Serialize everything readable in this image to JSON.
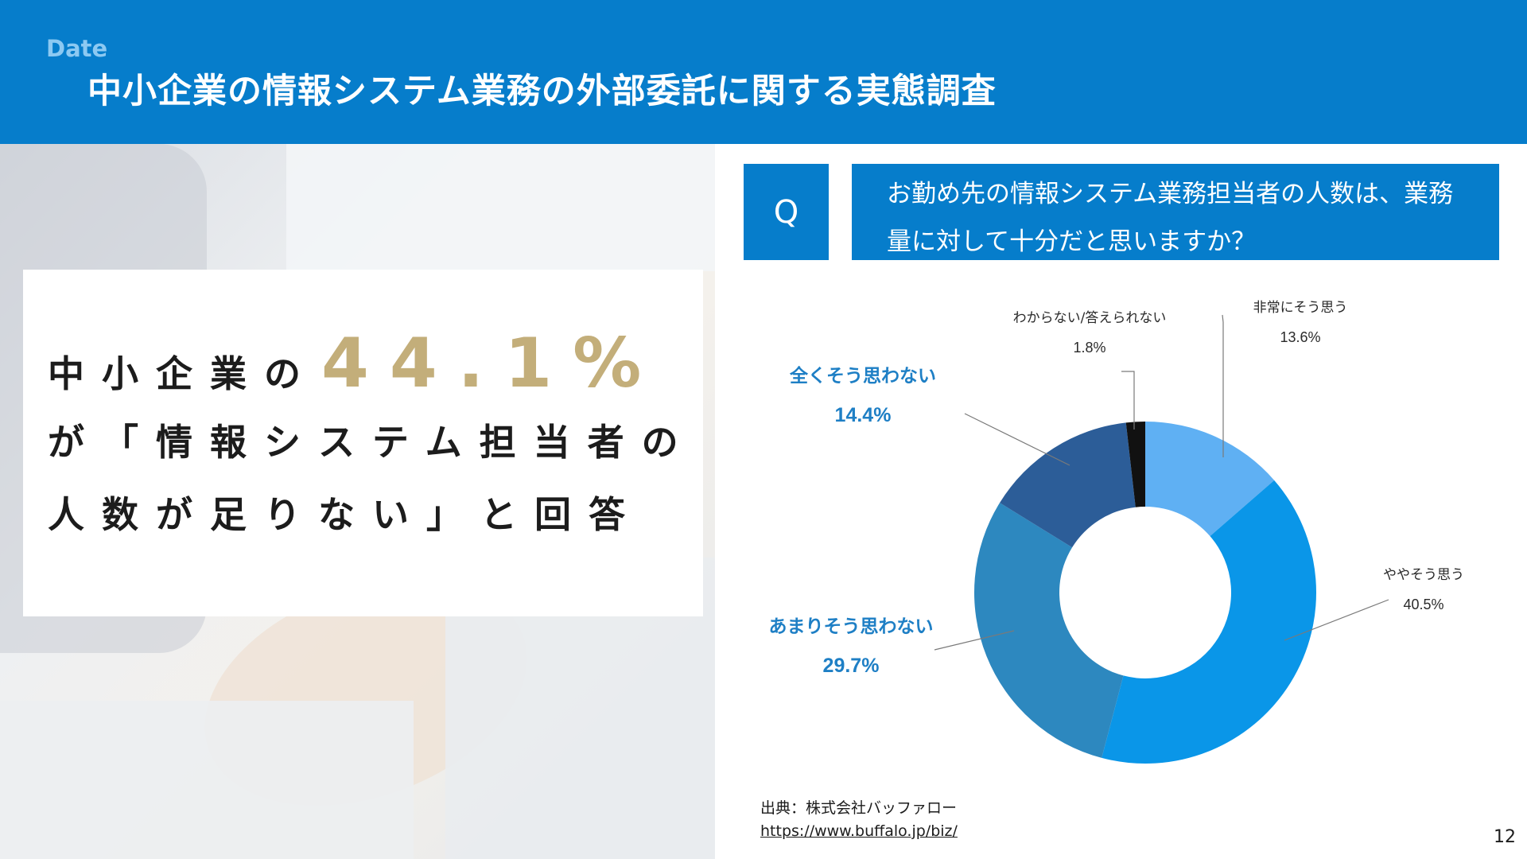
{
  "header": {
    "date_label": "Date",
    "title": "中小企業の情報システム業務の外部委託に関する実態調査"
  },
  "callout": {
    "line1_prefix": "中小企業の",
    "line1_percent": "44.1%",
    "line2": "が「情報システム担当者の",
    "line3": "人数が足りない」と回答"
  },
  "question": {
    "q_label": "Q",
    "text": "お勤め先の情報システム業務担当者の人数は、業務量に対して十分だと思いますか？"
  },
  "chart_data": {
    "type": "pie",
    "variant": "donut",
    "start_angle_deg": 0,
    "direction": "clockwise",
    "slices": [
      {
        "label": "非常にそう思う",
        "value": 13.6,
        "value_label": "13.6%",
        "color": "#5fb0f3",
        "emphasis": false
      },
      {
        "label": "ややそう思う",
        "value": 40.5,
        "value_label": "40.5%",
        "color": "#0a96e8",
        "emphasis": false
      },
      {
        "label": "あまりそう思わない",
        "value": 29.7,
        "value_label": "29.7%",
        "color": "#2d88bf",
        "emphasis": true
      },
      {
        "label": "全くそう思わない",
        "value": 14.4,
        "value_label": "14.4%",
        "color": "#2c5d98",
        "emphasis": true
      },
      {
        "label": "わからない/答えられない",
        "value": 1.8,
        "value_label": "1.8%",
        "color": "#111111",
        "emphasis": false
      }
    ],
    "emphasis_color": "#1e7fc5"
  },
  "source": {
    "label": "出典：株式会社バッファロー",
    "url": "https://www.buffalo.jp/biz/"
  },
  "page_number": "12"
}
